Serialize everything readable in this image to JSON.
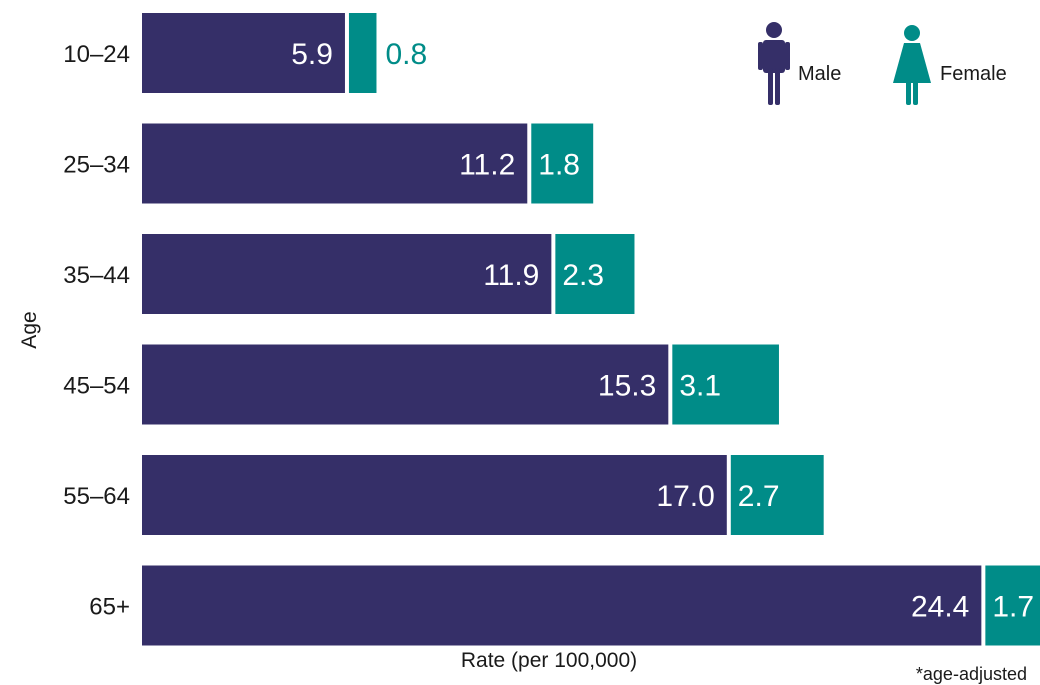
{
  "chart_data": {
    "type": "bar",
    "orientation": "horizontal",
    "stacked": true,
    "categories": [
      "10–24",
      "25–34",
      "35–44",
      "45–54",
      "55–64",
      "65+"
    ],
    "series": [
      {
        "name": "Male",
        "values": [
          5.9,
          11.2,
          11.9,
          15.3,
          17.0,
          24.4
        ],
        "labels": [
          "5.9",
          "11.2",
          "11.9",
          "15.3",
          "17.0",
          "24.4"
        ],
        "color": "#352F68"
      },
      {
        "name": "Female",
        "values": [
          0.8,
          1.8,
          2.3,
          3.1,
          2.7,
          1.7
        ],
        "labels": [
          "0.8",
          "1.8",
          "2.3",
          "3.1",
          "2.7",
          "1.7"
        ],
        "color": "#008C88"
      }
    ],
    "xlabel": "Rate (per 100,000)",
    "ylabel": "Age",
    "xlim": [
      0,
      26.1
    ],
    "grid": false,
    "legend_position": "top-right",
    "footnote": "*age-adjusted"
  },
  "icons": {
    "male": "male-figure-icon",
    "female": "female-figure-icon"
  }
}
